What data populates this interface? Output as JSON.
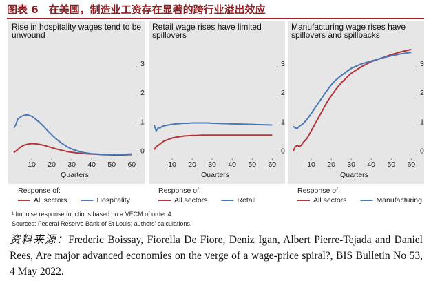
{
  "header": {
    "title": "图表 6　在美国，制造业工资存在显著的跨行业溢出效应"
  },
  "chart_data": [
    {
      "type": "line",
      "title": "Rise in hospitality wages tend to be unwound",
      "xlabel": "Quarters",
      "legend_title": "Response of:",
      "x": [
        1,
        2,
        3,
        4,
        5,
        6,
        8,
        10,
        12,
        14,
        16,
        18,
        20,
        22,
        25,
        28,
        30,
        35,
        40,
        45,
        50,
        55,
        60
      ],
      "xlim": [
        0,
        63
      ],
      "ylim": [
        -0.15,
        4.0
      ],
      "xticks": [
        10,
        20,
        30,
        40,
        50,
        60
      ],
      "yticks": [
        0,
        1,
        2,
        3
      ],
      "series": [
        {
          "name": "All sectors",
          "color": "#b5333a",
          "values": [
            0.05,
            0.1,
            0.15,
            0.22,
            0.26,
            0.3,
            0.34,
            0.36,
            0.35,
            0.33,
            0.3,
            0.26,
            0.22,
            0.18,
            0.13,
            0.08,
            0.06,
            0.02,
            0.0,
            -0.02,
            -0.03,
            -0.03,
            -0.02
          ]
        },
        {
          "name": "Hospitality",
          "color": "#4a78b5",
          "values": [
            0.9,
            1.0,
            1.2,
            1.25,
            1.3,
            1.33,
            1.35,
            1.3,
            1.2,
            1.08,
            0.95,
            0.8,
            0.66,
            0.53,
            0.37,
            0.24,
            0.17,
            0.06,
            0.01,
            -0.01,
            -0.02,
            -0.01,
            0.0
          ]
        }
      ]
    },
    {
      "type": "line",
      "title": "Retail wage rises have limited spillovers",
      "xlabel": "Quarters",
      "legend_title": "Response of:",
      "x": [
        1,
        2,
        3,
        4,
        5,
        6,
        8,
        10,
        12,
        14,
        16,
        18,
        20,
        22,
        25,
        28,
        30,
        35,
        40,
        45,
        50,
        55,
        60
      ],
      "xlim": [
        0,
        63
      ],
      "ylim": [
        -0.15,
        4.0
      ],
      "xticks": [
        10,
        20,
        30,
        40,
        50,
        60
      ],
      "yticks": [
        0,
        1,
        2,
        3
      ],
      "series": [
        {
          "name": "All sectors",
          "color": "#b5333a",
          "values": [
            0.15,
            0.25,
            0.3,
            0.35,
            0.4,
            0.45,
            0.5,
            0.55,
            0.58,
            0.6,
            0.62,
            0.63,
            0.64,
            0.64,
            0.65,
            0.65,
            0.65,
            0.65,
            0.65,
            0.65,
            0.65,
            0.65,
            0.65
          ]
        },
        {
          "name": "Retail",
          "color": "#4a78b5",
          "values": [
            1.0,
            0.8,
            0.9,
            0.9,
            0.95,
            0.97,
            1.0,
            1.02,
            1.04,
            1.05,
            1.06,
            1.06,
            1.07,
            1.07,
            1.07,
            1.07,
            1.06,
            1.05,
            1.04,
            1.03,
            1.02,
            1.01,
            1.0
          ]
        }
      ]
    },
    {
      "type": "line",
      "title": "Manufacturing wage rises have spillovers and spillbacks",
      "xlabel": "Quarters",
      "legend_title": "Response of:",
      "x": [
        1,
        2,
        3,
        4,
        5,
        6,
        8,
        10,
        12,
        14,
        16,
        18,
        20,
        22,
        25,
        28,
        30,
        35,
        40,
        45,
        50,
        55,
        60
      ],
      "xlim": [
        0,
        63
      ],
      "ylim": [
        -0.15,
        4.0
      ],
      "xticks": [
        10,
        20,
        30,
        40,
        50,
        60
      ],
      "yticks": [
        0,
        1,
        2,
        3
      ],
      "series": [
        {
          "name": "All sectors",
          "color": "#b5333a",
          "values": [
            0.1,
            0.25,
            0.3,
            0.25,
            0.3,
            0.4,
            0.55,
            0.8,
            1.05,
            1.3,
            1.55,
            1.8,
            2.0,
            2.2,
            2.45,
            2.65,
            2.78,
            3.0,
            3.18,
            3.3,
            3.42,
            3.52,
            3.6
          ]
        },
        {
          "name": "Manufacturing",
          "color": "#4a78b5",
          "values": [
            0.95,
            0.9,
            0.88,
            0.95,
            1.0,
            1.05,
            1.2,
            1.4,
            1.6,
            1.8,
            2.0,
            2.2,
            2.38,
            2.53,
            2.7,
            2.85,
            2.95,
            3.1,
            3.2,
            3.3,
            3.38,
            3.45,
            3.5
          ]
        }
      ]
    }
  ],
  "footnotes": [
    "¹ Impulse response functions based on a VECM of order 4.",
    "Sources: Federal Reserve Bank of St Louis; authors' calculations."
  ],
  "source": {
    "label": "资料来源：",
    "text": "Frederic Boissay, Fiorella De Fiore, Deniz Igan, Albert Pierre-Tejada and Daniel Rees, Are major advanced economies on the verge of a wage-price spiral?, BIS Bulletin No 53, 4 May 2022."
  }
}
